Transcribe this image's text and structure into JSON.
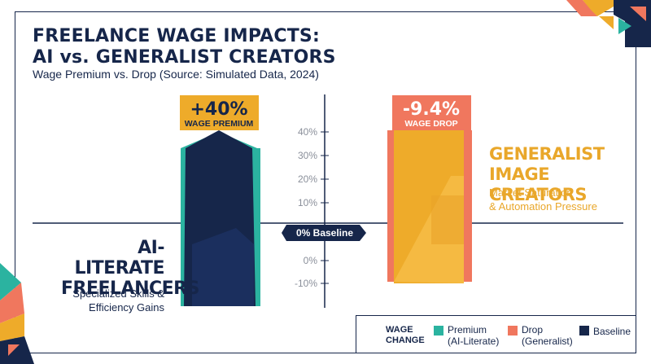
{
  "title_line1": "FREELANCE WAGE IMPACTS:",
  "title_line2": "AI vs. GENERALIST CREATORS",
  "subtitle": "Wage Premium vs. Drop (Source: Simulated Data, 2024)",
  "left_group": {
    "title_line1": "AI-LITERATE",
    "title_line2": "FREELANCERS",
    "sub_line1": "Specialized Skills &",
    "sub_line2": "Efficiency Gains"
  },
  "right_group": {
    "title_line1": "GENERALIST",
    "title_line2": "IMAGE CREATORS",
    "sub_line1": "Market Saturation",
    "sub_line2": "& Automation Pressure"
  },
  "legend": {
    "title_line1": "WAGE",
    "title_line2": "CHANGE",
    "premium_line1": "Premium",
    "premium_line2": "(AI-Literate)",
    "drop_line1": "Drop",
    "drop_line2": "(Generalist)",
    "baseline": "Baseline"
  },
  "colors": {
    "navy": "#16264a",
    "teal": "#2bb3a0",
    "coral": "#f0775e",
    "gold": "#eeab2a"
  },
  "chart_data": {
    "type": "bar",
    "categories": [
      "AI-Literate Freelancers",
      "Generalist Image Creators"
    ],
    "values": [
      40,
      -9.4
    ],
    "data_labels": [
      {
        "value": "+40%",
        "caption": "WAGE PREMIUM"
      },
      {
        "value": "-9.4%",
        "caption": "WAGE DROP"
      }
    ],
    "baseline_label": "0% Baseline",
    "upper_ticks": [
      "40%",
      "30%",
      "20%",
      "10%"
    ],
    "lower_ticks": [
      "0%",
      "-10%"
    ],
    "grid": false
  }
}
